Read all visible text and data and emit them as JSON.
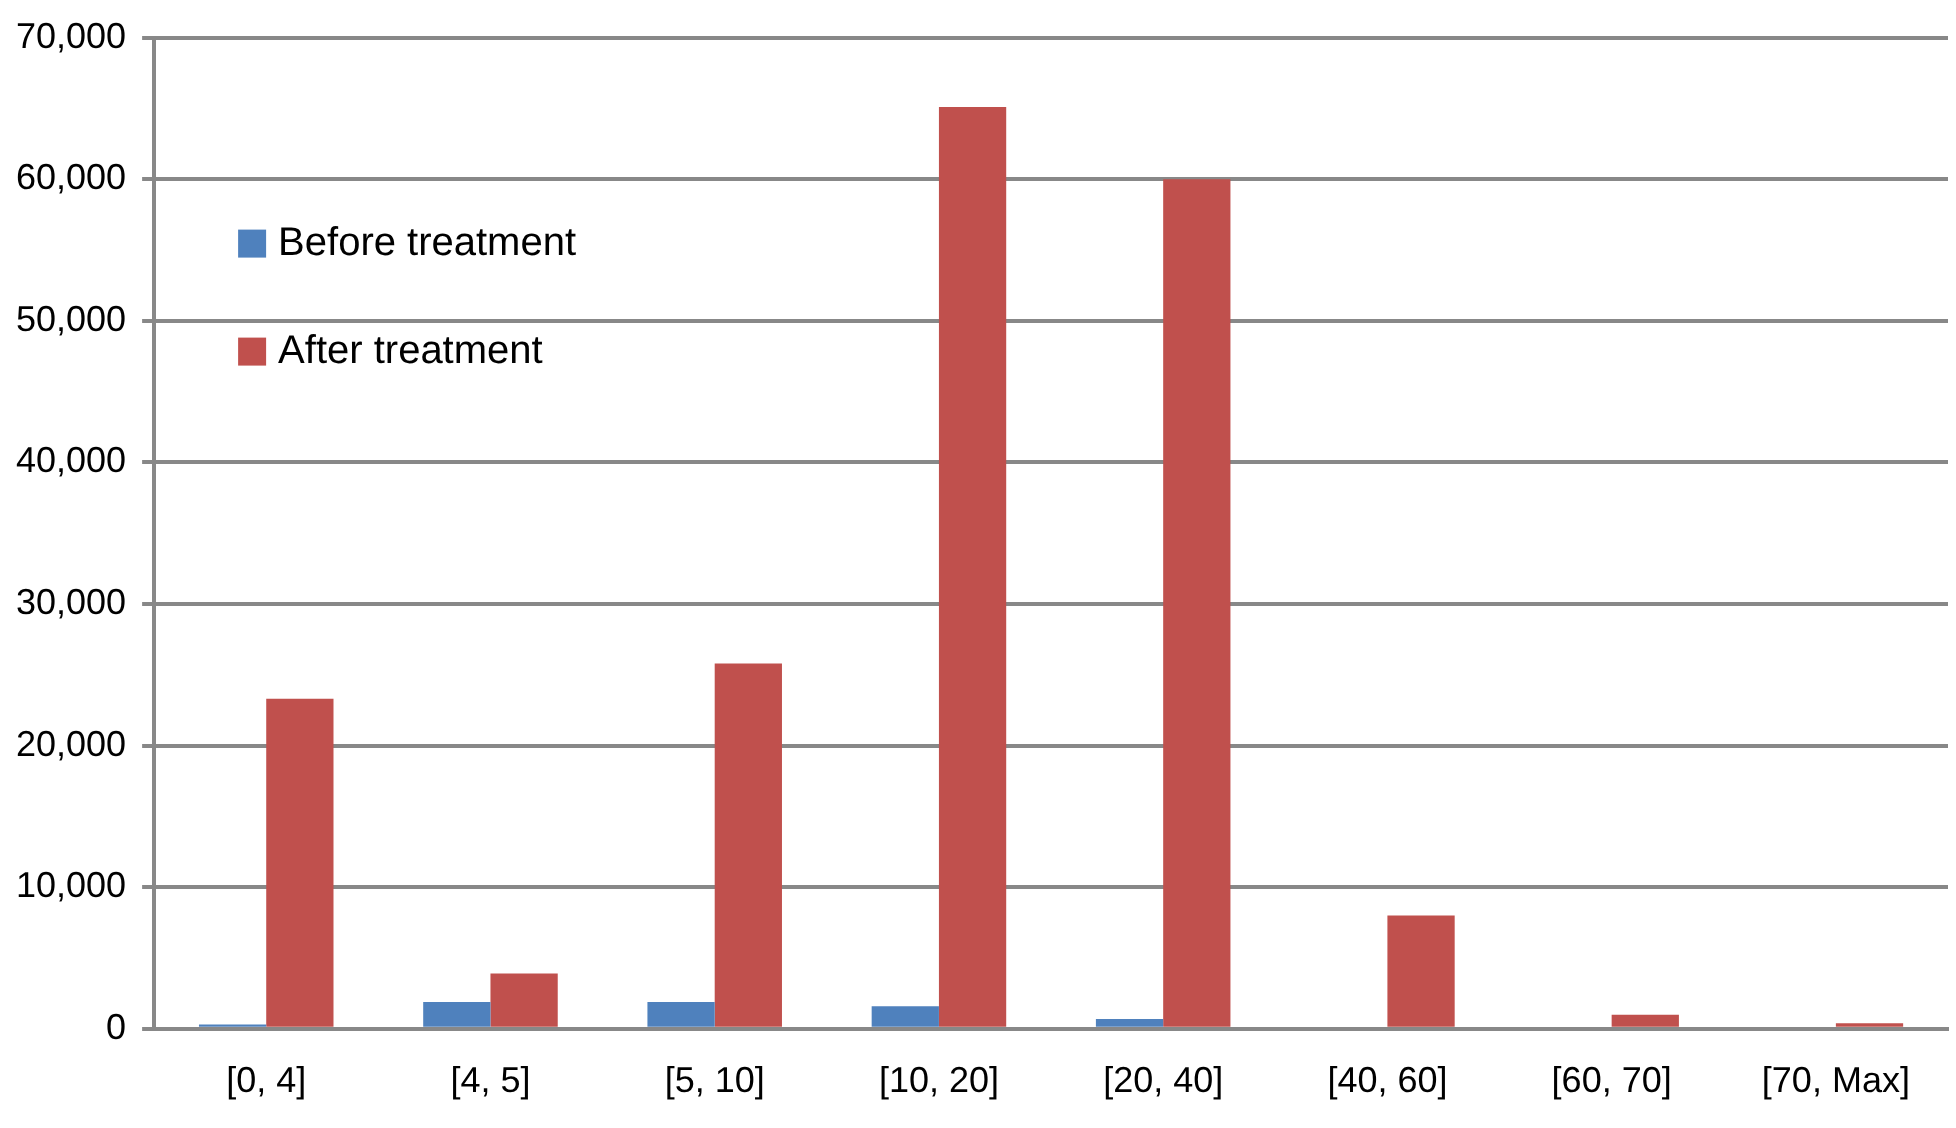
{
  "chart_data": {
    "type": "bar",
    "categories": [
      "[0, 4]",
      "[4, 5]",
      "[5, 10]",
      "[10, 20]",
      "[20, 40]",
      "[40, 60]",
      "[60, 70]",
      "[70, Max]"
    ],
    "series": [
      {
        "name": "Before treatment",
        "color": "#4f81bd",
        "values": [
          300,
          1900,
          1900,
          1600,
          700,
          0,
          0,
          0
        ]
      },
      {
        "name": "After treatment",
        "color": "#c0504d",
        "values": [
          23300,
          3900,
          25800,
          65100,
          60000,
          8000,
          1000,
          400
        ]
      }
    ],
    "ylim": [
      0,
      70000
    ],
    "yticks": [
      {
        "value": 0,
        "label": "0"
      },
      {
        "value": 10000,
        "label": "10,000"
      },
      {
        "value": 20000,
        "label": "20,000"
      },
      {
        "value": 30000,
        "label": "30,000"
      },
      {
        "value": 40000,
        "label": "40,000"
      },
      {
        "value": 50000,
        "label": "50,000"
      },
      {
        "value": 60000,
        "label": "60,000"
      },
      {
        "value": 70000,
        "label": "70,000"
      }
    ],
    "grid": "y",
    "legend": "top left"
  }
}
